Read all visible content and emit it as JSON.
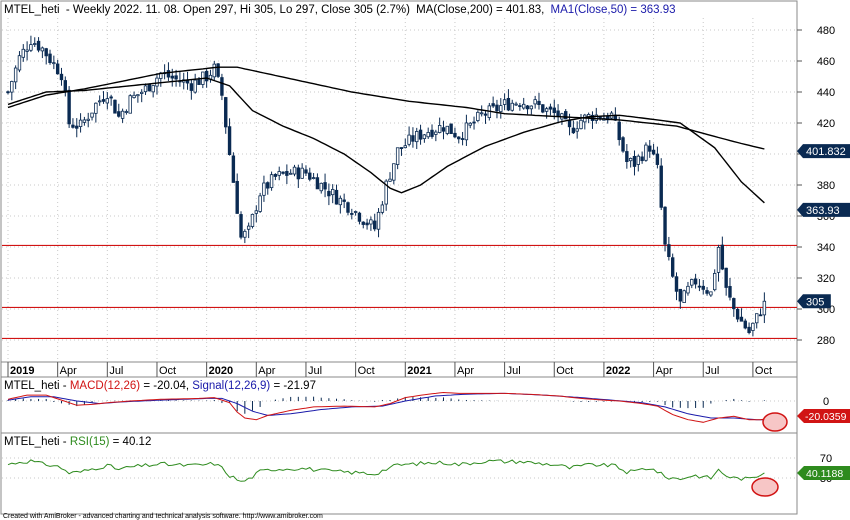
{
  "window": {
    "title": "MTEL_heti - Weekly 2022. 11. 08. Open 297, Hi 305, Lo 297, Close 305 (2.7%) MA(Close,200) = 401.83, MA1(Close,50) = 363.93"
  },
  "header": {
    "symbol": "MTEL_heti",
    "quote": "- Weekly 2022. 11. 08. Open 297, Hi 305, Lo 297, Close 305 (2.7%)",
    "ma200_label": "MA(Close,200) = 401.83,",
    "ma50_label": "MA1(Close,50) = 363.93"
  },
  "colors": {
    "candle": "#0a2a52",
    "ma": "#000000",
    "hline": "#d11414",
    "grid": "#c9c9c9",
    "macd": "#d11414",
    "signal": "#1a1aaa",
    "histogram": "#0a2a52",
    "rsi": "#2e8b1e",
    "badge_dark": "#0a2a52",
    "badge_red": "#d11414",
    "badge_green": "#2e8b1e",
    "highlight": "#d11414"
  },
  "chart_data": [
    {
      "type": "candlestick",
      "panel": "price",
      "y_ticks": [
        280,
        300,
        320,
        340,
        360,
        380,
        400,
        420,
        440,
        460,
        480
      ],
      "ylim": [
        270,
        488
      ],
      "x_tick_labels": [
        "2019",
        "Apr",
        "Jul",
        "Oct",
        "2020",
        "Apr",
        "Jul",
        "Oct",
        "2021",
        "Apr",
        "Jul",
        "Oct",
        "2022",
        "Apr",
        "Jul",
        "Oct"
      ],
      "x_tick_weeks": [
        0,
        13,
        26,
        39,
        52,
        65,
        78,
        91,
        104,
        117,
        130,
        143,
        156,
        169,
        182,
        195
      ],
      "bold_ticks": [
        "2019",
        "2020",
        "2021",
        "2022"
      ],
      "close_anchors": [
        [
          0,
          440
        ],
        [
          3,
          462
        ],
        [
          6,
          474
        ],
        [
          9,
          468
        ],
        [
          12,
          458
        ],
        [
          14,
          452
        ],
        [
          16,
          420
        ],
        [
          19,
          418
        ],
        [
          23,
          432
        ],
        [
          26,
          440
        ],
        [
          29,
          424
        ],
        [
          32,
          435
        ],
        [
          36,
          442
        ],
        [
          40,
          452
        ],
        [
          44,
          448
        ],
        [
          48,
          445
        ],
        [
          52,
          450
        ],
        [
          54,
          455
        ],
        [
          56,
          438
        ],
        [
          58,
          400
        ],
        [
          60,
          365
        ],
        [
          61,
          346
        ],
        [
          63,
          350
        ],
        [
          66,
          375
        ],
        [
          70,
          385
        ],
        [
          74,
          388
        ],
        [
          78,
          388
        ],
        [
          82,
          380
        ],
        [
          86,
          372
        ],
        [
          90,
          365
        ],
        [
          93,
          358
        ],
        [
          96,
          352
        ],
        [
          99,
          380
        ],
        [
          102,
          402
        ],
        [
          106,
          410
        ],
        [
          110,
          415
        ],
        [
          114,
          418
        ],
        [
          118,
          412
        ],
        [
          121,
          418
        ],
        [
          124,
          425
        ],
        [
          127,
          428
        ],
        [
          130,
          432
        ],
        [
          134,
          434
        ],
        [
          138,
          432
        ],
        [
          141,
          428
        ],
        [
          144,
          425
        ],
        [
          147,
          415
        ],
        [
          150,
          422
        ],
        [
          153,
          425
        ],
        [
          156,
          424
        ],
        [
          158,
          425
        ],
        [
          160,
          410
        ],
        [
          162,
          395
        ],
        [
          164,
          394
        ],
        [
          166,
          400
        ],
        [
          168,
          405
        ],
        [
          170,
          390
        ],
        [
          172,
          340
        ],
        [
          174,
          320
        ],
        [
          176,
          303
        ],
        [
          178,
          312
        ],
        [
          180,
          318
        ],
        [
          182,
          315
        ],
        [
          184,
          310
        ],
        [
          186,
          340
        ],
        [
          188,
          312
        ],
        [
          190,
          300
        ],
        [
          192,
          292
        ],
        [
          194,
          285
        ],
        [
          196,
          294
        ],
        [
          198,
          305
        ]
      ],
      "last_close": 305,
      "ma200": {
        "name": "MA(Close,200)",
        "last": 401.83,
        "points": [
          [
            0,
            430
          ],
          [
            10,
            438
          ],
          [
            20,
            442
          ],
          [
            40,
            452
          ],
          [
            55,
            456
          ],
          [
            60,
            456
          ],
          [
            75,
            448
          ],
          [
            90,
            440
          ],
          [
            105,
            434
          ],
          [
            120,
            430
          ],
          [
            130,
            426
          ],
          [
            145,
            424
          ],
          [
            160,
            422
          ],
          [
            175,
            418
          ],
          [
            190,
            408
          ],
          [
            200,
            402
          ]
        ]
      },
      "ma50": {
        "name": "MA1(Close,50)",
        "last": 363.93,
        "points": [
          [
            0,
            432
          ],
          [
            10,
            440
          ],
          [
            20,
            441
          ],
          [
            40,
            446
          ],
          [
            52,
            449
          ],
          [
            58,
            444
          ],
          [
            64,
            428
          ],
          [
            72,
            418
          ],
          [
            80,
            410
          ],
          [
            88,
            400
          ],
          [
            95,
            388
          ],
          [
            100,
            378
          ],
          [
            103,
            375
          ],
          [
            108,
            380
          ],
          [
            115,
            392
          ],
          [
            125,
            405
          ],
          [
            135,
            414
          ],
          [
            145,
            421
          ],
          [
            152,
            424
          ],
          [
            160,
            425
          ],
          [
            170,
            422
          ],
          [
            176,
            420
          ],
          [
            185,
            404
          ],
          [
            192,
            382
          ],
          [
            200,
            364
          ]
        ]
      },
      "horizontal_levels": [
        341,
        301,
        281
      ],
      "badges": [
        {
          "label": "401.832",
          "value": 401.832
        },
        {
          "label": "363.93",
          "value": 363.93
        },
        {
          "label": "305",
          "value": 305
        }
      ]
    },
    {
      "type": "line",
      "panel": "macd",
      "title": "MTEL_heti - MACD(12,26) = -20.04, Signal(12,26,9) = -21.97",
      "series": [
        {
          "name": "MACD(12,26)",
          "last": -20.04
        },
        {
          "name": "Signal(12,26,9)",
          "last": -21.97
        }
      ],
      "y_ticks": [
        0
      ],
      "badge": "-20.0359",
      "macd_anchors": [
        [
          0,
          2
        ],
        [
          5,
          7
        ],
        [
          10,
          7
        ],
        [
          14,
          1
        ],
        [
          18,
          -5
        ],
        [
          22,
          -4
        ],
        [
          26,
          -2
        ],
        [
          32,
          0
        ],
        [
          40,
          2
        ],
        [
          50,
          3
        ],
        [
          54,
          4
        ],
        [
          58,
          -2
        ],
        [
          60,
          -13
        ],
        [
          62,
          -20
        ],
        [
          65,
          -22
        ],
        [
          68,
          -17
        ],
        [
          74,
          -11
        ],
        [
          80,
          -7
        ],
        [
          88,
          -6
        ],
        [
          96,
          -7
        ],
        [
          100,
          -3
        ],
        [
          104,
          4
        ],
        [
          110,
          8
        ],
        [
          114,
          10
        ],
        [
          118,
          9
        ],
        [
          124,
          9
        ],
        [
          130,
          9
        ],
        [
          136,
          8
        ],
        [
          144,
          6
        ],
        [
          150,
          3
        ],
        [
          156,
          1
        ],
        [
          160,
          0
        ],
        [
          166,
          -3
        ],
        [
          170,
          -6
        ],
        [
          174,
          -16
        ],
        [
          178,
          -22
        ],
        [
          182,
          -25
        ],
        [
          186,
          -20
        ],
        [
          190,
          -18
        ],
        [
          194,
          -22
        ],
        [
          197,
          -22
        ],
        [
          200,
          -20
        ]
      ],
      "signal_anchors": [
        [
          0,
          1
        ],
        [
          6,
          5
        ],
        [
          12,
          5
        ],
        [
          18,
          0
        ],
        [
          24,
          -3
        ],
        [
          30,
          -1
        ],
        [
          40,
          1
        ],
        [
          52,
          3
        ],
        [
          56,
          3
        ],
        [
          60,
          -3
        ],
        [
          64,
          -12
        ],
        [
          68,
          -17
        ],
        [
          74,
          -15
        ],
        [
          82,
          -10
        ],
        [
          90,
          -7
        ],
        [
          98,
          -6
        ],
        [
          104,
          0
        ],
        [
          112,
          6
        ],
        [
          120,
          8
        ],
        [
          130,
          9
        ],
        [
          140,
          7
        ],
        [
          150,
          4
        ],
        [
          158,
          1
        ],
        [
          166,
          -2
        ],
        [
          172,
          -7
        ],
        [
          178,
          -15
        ],
        [
          184,
          -20
        ],
        [
          190,
          -20
        ],
        [
          196,
          -22
        ],
        [
          200,
          -22
        ]
      ],
      "ylim": [
        -30,
        15
      ]
    },
    {
      "type": "line",
      "panel": "rsi",
      "title": "MTEL_heti - RSI(15) = 40.12",
      "series": [
        {
          "name": "RSI(15)",
          "last": 40.12
        }
      ],
      "y_ticks": [
        70,
        30
      ],
      "badge": "40.1188",
      "rsi_anchors": [
        [
          0,
          57
        ],
        [
          3,
          62
        ],
        [
          6,
          64
        ],
        [
          9,
          58
        ],
        [
          12,
          55
        ],
        [
          14,
          50
        ],
        [
          16,
          40
        ],
        [
          19,
          42
        ],
        [
          23,
          50
        ],
        [
          26,
          55
        ],
        [
          29,
          47
        ],
        [
          32,
          52
        ],
        [
          36,
          55
        ],
        [
          40,
          58
        ],
        [
          44,
          56
        ],
        [
          48,
          55
        ],
        [
          52,
          57
        ],
        [
          54,
          59
        ],
        [
          56,
          50
        ],
        [
          58,
          35
        ],
        [
          60,
          27
        ],
        [
          61,
          22
        ],
        [
          63,
          28
        ],
        [
          66,
          43
        ],
        [
          70,
          48
        ],
        [
          74,
          49
        ],
        [
          78,
          49
        ],
        [
          82,
          45
        ],
        [
          86,
          43
        ],
        [
          90,
          41
        ],
        [
          93,
          40
        ],
        [
          96,
          38
        ],
        [
          99,
          48
        ],
        [
          102,
          56
        ],
        [
          106,
          58
        ],
        [
          110,
          60
        ],
        [
          114,
          61
        ],
        [
          118,
          57
        ],
        [
          121,
          60
        ],
        [
          124,
          63
        ],
        [
          127,
          64
        ],
        [
          130,
          63
        ],
        [
          134,
          63
        ],
        [
          138,
          60
        ],
        [
          141,
          58
        ],
        [
          144,
          56
        ],
        [
          147,
          50
        ],
        [
          150,
          54
        ],
        [
          153,
          57
        ],
        [
          156,
          55
        ],
        [
          158,
          56
        ],
        [
          160,
          50
        ],
        [
          162,
          42
        ],
        [
          164,
          43
        ],
        [
          166,
          48
        ],
        [
          168,
          50
        ],
        [
          170,
          43
        ],
        [
          172,
          32
        ],
        [
          174,
          30
        ],
        [
          176,
          28
        ],
        [
          178,
          33
        ],
        [
          180,
          35
        ],
        [
          182,
          32
        ],
        [
          184,
          30
        ],
        [
          186,
          46
        ],
        [
          188,
          35
        ],
        [
          190,
          30
        ],
        [
          192,
          29
        ],
        [
          194,
          28
        ],
        [
          196,
          34
        ],
        [
          198,
          40
        ]
      ],
      "ylim": [
        20,
        80
      ]
    }
  ],
  "footer": {
    "text": "Created with AmiBroker - advanced charting and technical analysis software. http://www.amibroker.com"
  }
}
